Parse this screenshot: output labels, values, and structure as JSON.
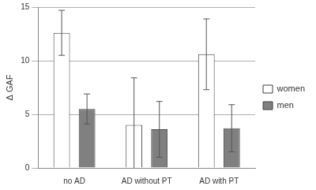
{
  "chart_data": {
    "type": "bar",
    "y_label": "Δ GAF",
    "categories": [
      "no AD",
      "AD without PT",
      "AD with PT"
    ],
    "series": [
      {
        "name": "women",
        "color": "#ffffff",
        "values": [
          12.6,
          4.0,
          10.6
        ],
        "error": [
          2.1,
          4.4,
          3.3
        ]
      },
      {
        "name": "men",
        "color": "#808080",
        "values": [
          5.5,
          3.6,
          3.7
        ],
        "error": [
          1.4,
          2.6,
          2.2
        ]
      }
    ],
    "ylim": [
      0,
      15
    ],
    "yticks": [
      0,
      5,
      10,
      15
    ],
    "grid": true,
    "legend": "right"
  }
}
